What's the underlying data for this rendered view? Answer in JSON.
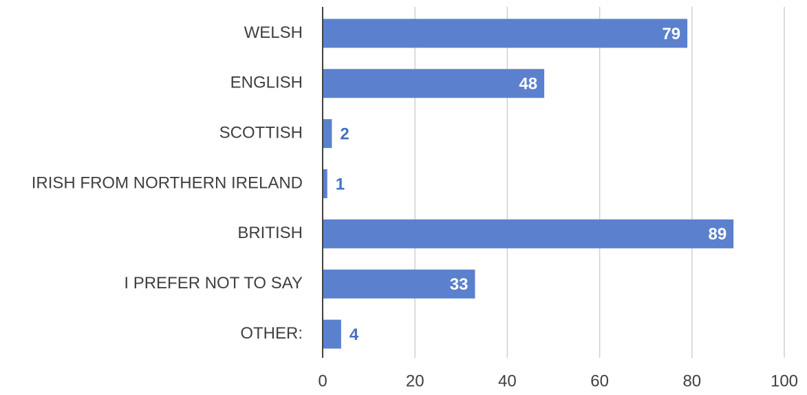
{
  "chart_data": {
    "type": "barh",
    "categories": [
      "WELSH",
      "ENGLISH",
      "SCOTTISH",
      "IRISH FROM NORTHERN IRELAND",
      "BRITISH",
      "I PREFER NOT TO SAY",
      "OTHER:"
    ],
    "values": [
      79,
      48,
      2,
      1,
      89,
      33,
      4
    ],
    "color": "#5b80cd",
    "label_color": "#4472c4",
    "xlim": [
      0,
      100
    ],
    "xticks": [
      0,
      20,
      40,
      60,
      80,
      100
    ],
    "grid": true
  }
}
